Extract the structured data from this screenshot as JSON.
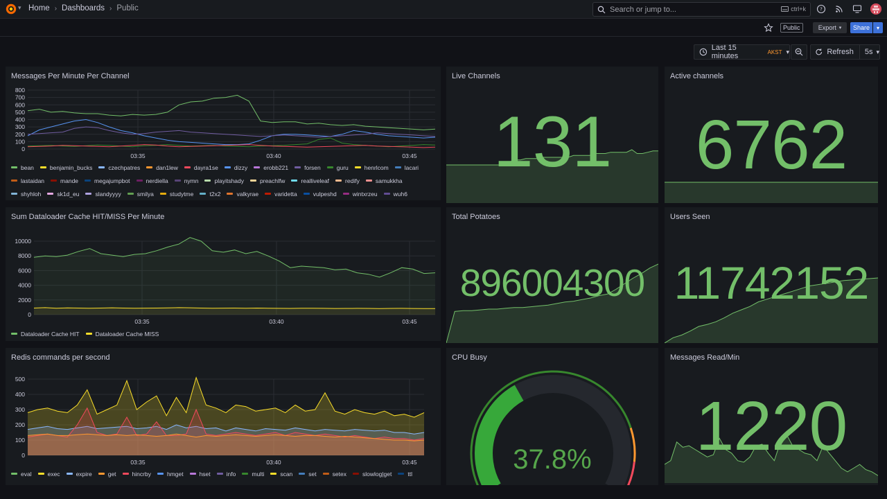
{
  "nav": {
    "breadcrumb": [
      "Home",
      "Dashboards",
      "Public"
    ],
    "search_placeholder": "Search or jump to...",
    "search_shortcut": "ctrl+k",
    "icons": [
      "help-icon",
      "rss-icon",
      "monitor-icon"
    ]
  },
  "toolbar": {
    "public_badge": "Public",
    "export_label": "Export",
    "share_label": "Share"
  },
  "time": {
    "range_label": "Last 15 minutes",
    "timezone": "AKST",
    "refresh_label": "Refresh",
    "refresh_interval": "5s"
  },
  "colors": {
    "accent_green": "#73bf69",
    "yellow": "#fade2a",
    "orange": "#ff9830",
    "red": "#f2495c",
    "blue": "#5794f2",
    "primary": "#3d71d9"
  },
  "panels": {
    "messages_per_minute": {
      "title": "Messages Per Minute Per Channel",
      "legend": [
        {
          "name": "bean",
          "color": "#73bf69"
        },
        {
          "name": "benjamin_bucks",
          "color": "#fade2a"
        },
        {
          "name": "czechpatres",
          "color": "#8ab8ff"
        },
        {
          "name": "dan1lew",
          "color": "#ff9830"
        },
        {
          "name": "dayra1se",
          "color": "#f2495c"
        },
        {
          "name": "dizzy",
          "color": "#5794f2"
        },
        {
          "name": "erobb221",
          "color": "#b877d9"
        },
        {
          "name": "forsen",
          "color": "#705da0"
        },
        {
          "name": "guru",
          "color": "#37872d"
        },
        {
          "name": "henrlcom",
          "color": "#fade2a"
        },
        {
          "name": "lacari",
          "color": "#447ebc"
        },
        {
          "name": "lastaidan",
          "color": "#c15c17"
        },
        {
          "name": "mande",
          "color": "#890f02"
        },
        {
          "name": "megajumpbot",
          "color": "#0a437c"
        },
        {
          "name": "nerdiella",
          "color": "#6d1f62"
        },
        {
          "name": "nymn",
          "color": "#584477"
        },
        {
          "name": "playitshady",
          "color": "#b7dbab"
        },
        {
          "name": "preachlfw",
          "color": "#f4d598"
        },
        {
          "name": "realliveleaf",
          "color": "#70dbed"
        },
        {
          "name": "redify",
          "color": "#f9ba8f"
        },
        {
          "name": "samukkha",
          "color": "#f29191"
        },
        {
          "name": "shyhloh",
          "color": "#82b5d8"
        },
        {
          "name": "sk1d_eu",
          "color": "#e5a8e2"
        },
        {
          "name": "slandyyyy",
          "color": "#aea2e0"
        },
        {
          "name": "smilya",
          "color": "#629e51"
        },
        {
          "name": "studytme",
          "color": "#e5ac0e"
        },
        {
          "name": "t2x2",
          "color": "#64b0c8"
        },
        {
          "name": "valkyrae",
          "color": "#e0752d"
        },
        {
          "name": "varidetta",
          "color": "#bf1b00"
        },
        {
          "name": "vulpeshd",
          "color": "#0a50a1"
        },
        {
          "name": "wintxrzeu",
          "color": "#962d82"
        },
        {
          "name": "wuh6",
          "color": "#614d93"
        }
      ]
    },
    "dataloader": {
      "title": "Sum Dataloader Cache HIT/MISS Per Minute",
      "legend": [
        {
          "name": "Dataloader Cache HIT",
          "color": "#73bf69"
        },
        {
          "name": "Dataloader Cache MISS",
          "color": "#fade2a"
        }
      ]
    },
    "redis": {
      "title": "Redis commands per second",
      "legend": [
        {
          "name": "eval",
          "color": "#73bf69"
        },
        {
          "name": "exec",
          "color": "#fade2a"
        },
        {
          "name": "expire",
          "color": "#8ab8ff"
        },
        {
          "name": "get",
          "color": "#ff9830"
        },
        {
          "name": "hincrby",
          "color": "#f2495c"
        },
        {
          "name": "hmget",
          "color": "#5794f2"
        },
        {
          "name": "hset",
          "color": "#b877d9"
        },
        {
          "name": "info",
          "color": "#705da0"
        },
        {
          "name": "multi",
          "color": "#37872d"
        },
        {
          "name": "scan",
          "color": "#fade2a"
        },
        {
          "name": "set",
          "color": "#447ebc"
        },
        {
          "name": "setex",
          "color": "#c15c17"
        },
        {
          "name": "slowlog|get",
          "color": "#890f02"
        },
        {
          "name": "ttl",
          "color": "#0a437c"
        }
      ]
    },
    "live_channels": {
      "title": "Live Channels",
      "value": "131"
    },
    "active_channels": {
      "title": "Active channels",
      "value": "6762"
    },
    "total_potatoes": {
      "title": "Total Potatoes",
      "value": "896004300"
    },
    "users_seen": {
      "title": "Users Seen",
      "value": "11742152"
    },
    "cpu_busy": {
      "title": "CPU Busy",
      "value": "37.8%",
      "fraction": 0.378
    },
    "messages_read": {
      "title": "Messages Read/Min",
      "value": "1220"
    }
  },
  "chart_data": [
    {
      "type": "line",
      "title": "Messages Per Minute Per Channel",
      "ylim": [
        0,
        800
      ],
      "yticks": [
        "800",
        "700",
        "600",
        "500",
        "400",
        "300",
        "200",
        "100",
        "0"
      ],
      "xticks": [
        "03:35",
        "03:40",
        "03:45"
      ],
      "series": [
        {
          "name": "bean",
          "values": [
            520,
            540,
            500,
            510,
            490,
            480,
            480,
            460,
            450,
            470,
            460,
            470,
            500,
            600,
            640,
            650,
            690,
            700,
            730,
            650,
            380,
            360,
            370,
            370,
            340,
            350,
            330,
            320,
            330,
            310,
            300,
            290,
            280,
            270,
            260,
            270
          ]
        },
        {
          "name": "dizzy",
          "values": [
            180,
            260,
            300,
            340,
            380,
            400,
            360,
            300,
            250,
            220,
            180,
            150,
            120,
            100,
            90,
            80,
            70,
            60,
            60,
            70,
            120,
            180,
            200,
            200,
            190,
            180,
            170,
            200,
            250,
            230,
            200,
            180,
            170,
            160,
            150,
            160
          ]
        },
        {
          "name": "forsen",
          "values": [
            200,
            210,
            220,
            230,
            280,
            300,
            290,
            250,
            220,
            200,
            210,
            230,
            240,
            250,
            230,
            220,
            210,
            200,
            190,
            180,
            170,
            180,
            190,
            180,
            170,
            160,
            170,
            180,
            190,
            200,
            220,
            210,
            200,
            190,
            180,
            170
          ]
        },
        {
          "name": "guru",
          "values": [
            40,
            45,
            50,
            40,
            35,
            45,
            55,
            50,
            40,
            30,
            45,
            50,
            60,
            50,
            40,
            45,
            50,
            40,
            35,
            30,
            40,
            45,
            50,
            60,
            70,
            130,
            150,
            80,
            60,
            50,
            40,
            30,
            40,
            50,
            60,
            55
          ]
        },
        {
          "name": "dayra1se",
          "values": [
            30,
            35,
            40,
            50,
            45,
            40,
            35,
            30,
            40,
            50,
            60,
            55,
            40,
            30,
            35,
            40,
            45,
            50,
            55,
            60,
            50,
            40,
            35,
            30,
            25,
            30,
            35,
            40,
            45,
            50,
            40,
            35,
            30,
            25,
            20,
            25
          ]
        }
      ]
    },
    {
      "type": "area",
      "title": "Sum Dataloader Cache HIT/MISS Per Minute",
      "ylim": [
        0,
        10000
      ],
      "yticks": [
        "10000",
        "8000",
        "6000",
        "4000",
        "2000",
        "0"
      ],
      "xticks": [
        "03:35",
        "03:40",
        "03:45"
      ],
      "series": [
        {
          "name": "Dataloader Cache HIT",
          "values": [
            7800,
            8000,
            7900,
            8100,
            8600,
            9000,
            8300,
            8100,
            7900,
            8200,
            8300,
            8700,
            9200,
            9600,
            10500,
            10000,
            8700,
            8500,
            8800,
            8300,
            8600,
            8000,
            7300,
            6400,
            6600,
            6500,
            6400,
            6100,
            6200,
            5700,
            5500,
            5100,
            5700,
            6400,
            6200,
            5600,
            5700
          ]
        },
        {
          "name": "Dataloader Cache MISS",
          "values": [
            900,
            950,
            880,
            920,
            900,
            870,
            900,
            930,
            900,
            880,
            890,
            900,
            920,
            950,
            930,
            900,
            870,
            890,
            900,
            880,
            900,
            880,
            860,
            850,
            870,
            880,
            860,
            840,
            850,
            860,
            850,
            830,
            850,
            860,
            840,
            820,
            830
          ]
        }
      ]
    },
    {
      "type": "area",
      "title": "Redis commands per second",
      "ylim": [
        0,
        500
      ],
      "yticks": [
        "500",
        "400",
        "300",
        "200",
        "100",
        "0"
      ],
      "xticks": [
        "03:35",
        "03:40",
        "03:45"
      ],
      "series": [
        {
          "name": "exec",
          "values": [
            280,
            300,
            310,
            290,
            280,
            330,
            430,
            270,
            300,
            330,
            490,
            300,
            350,
            390,
            260,
            380,
            280,
            510,
            330,
            310,
            280,
            330,
            320,
            290,
            300,
            310,
            280,
            330,
            290,
            300,
            410,
            290,
            270,
            300,
            280,
            270,
            290,
            260,
            270,
            250,
            280
          ]
        },
        {
          "name": "expire",
          "values": [
            170,
            180,
            190,
            175,
            170,
            180,
            190,
            175,
            180,
            185,
            190,
            175,
            180,
            190,
            170,
            200,
            180,
            190,
            175,
            180,
            160,
            180,
            170,
            160,
            175,
            170,
            165,
            180,
            170,
            160,
            170,
            165,
            160,
            170,
            165,
            160,
            165,
            150,
            150,
            140,
            150
          ]
        },
        {
          "name": "hincrby",
          "values": [
            120,
            130,
            140,
            130,
            120,
            200,
            310,
            150,
            130,
            140,
            250,
            130,
            140,
            220,
            130,
            130,
            140,
            300,
            140,
            130,
            140,
            150,
            140,
            130,
            140,
            150,
            130,
            150,
            140,
            130,
            140,
            130,
            120,
            130,
            120,
            110,
            120,
            110,
            110,
            100,
            110
          ]
        },
        {
          "name": "get",
          "values": [
            130,
            135,
            140,
            130,
            130,
            135,
            140,
            135,
            130,
            135,
            130,
            135,
            130,
            125,
            130,
            140,
            130,
            120,
            130,
            125,
            130,
            135,
            130,
            125,
            130,
            135,
            130,
            125,
            130,
            130,
            125,
            120,
            125,
            120,
            115,
            110,
            105,
            100,
            100,
            95,
            100
          ]
        }
      ]
    },
    {
      "type": "area",
      "title": "Live Channels",
      "values": [
        60,
        60,
        60,
        60,
        60,
        60,
        60,
        60,
        60,
        60,
        60,
        62,
        65,
        68,
        68,
        70,
        70,
        70,
        72,
        72,
        72,
        72,
        72,
        72,
        75,
        75,
        75,
        75,
        78,
        78,
        78,
        80,
        80,
        80,
        80,
        84,
        78,
        78,
        80,
        82,
        82
      ]
    },
    {
      "type": "area",
      "title": "Active channels",
      "values": [
        10,
        10,
        10,
        10,
        10,
        10,
        10,
        10,
        10,
        10,
        10,
        10,
        10,
        10,
        10,
        10,
        10,
        10,
        10,
        10
      ]
    },
    {
      "type": "area",
      "title": "Total Potatoes",
      "values": [
        0,
        40,
        41,
        41,
        42,
        43,
        43,
        44,
        45,
        45,
        46,
        47,
        48,
        50,
        52,
        53,
        55,
        57,
        60,
        62,
        68,
        75,
        82,
        88,
        95,
        100
      ]
    },
    {
      "type": "area",
      "title": "Users Seen",
      "values": [
        0,
        8,
        12,
        18,
        25,
        28,
        32,
        38,
        45,
        50,
        55,
        62,
        66,
        70,
        74,
        78,
        82,
        86,
        88,
        90,
        92,
        94,
        95,
        96,
        97,
        98
      ]
    },
    {
      "type": "area",
      "title": "Messages Read/Min",
      "values": [
        25,
        30,
        55,
        48,
        50,
        45,
        40,
        35,
        38,
        60,
        45,
        40,
        30,
        28,
        35,
        50,
        52,
        40,
        30,
        55,
        65,
        50,
        45,
        40,
        38,
        30,
        50,
        40,
        30,
        20,
        15,
        20,
        25,
        18,
        15,
        10
      ]
    }
  ]
}
